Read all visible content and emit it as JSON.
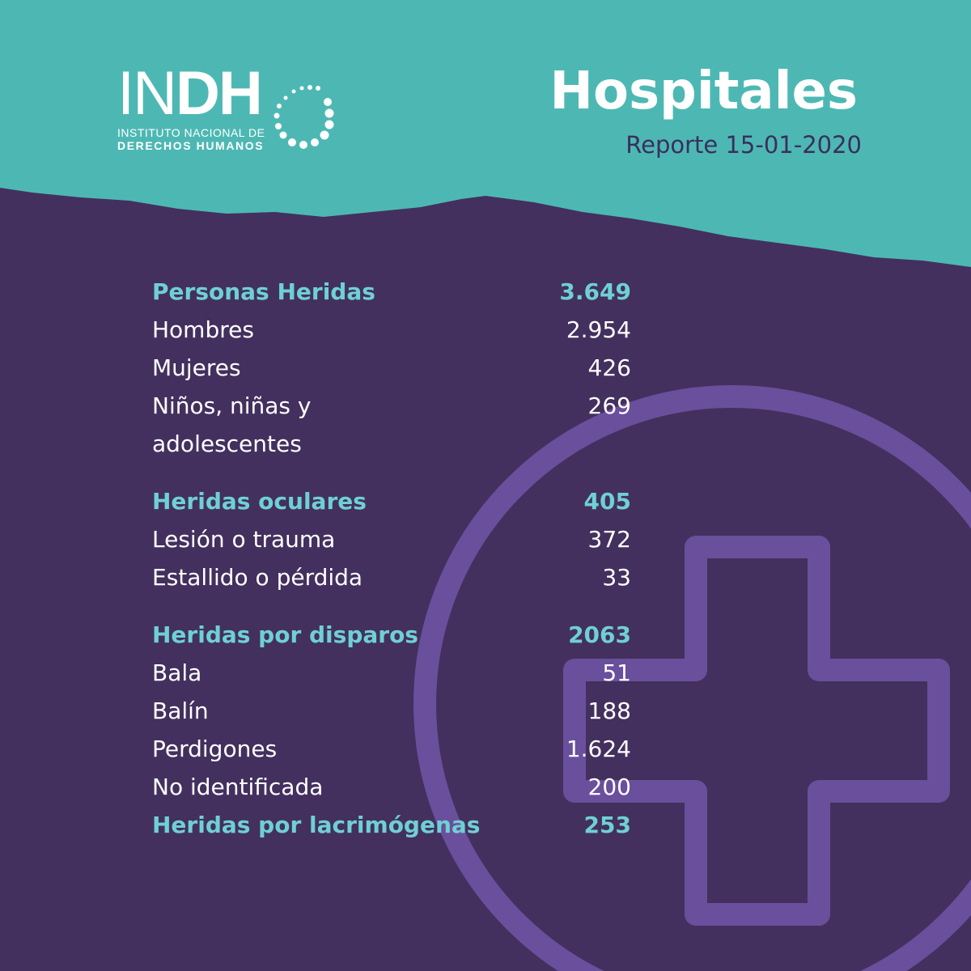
{
  "logo": {
    "main": "INDH",
    "line1": "INSTITUTO NACIONAL DE",
    "line2": "DERECHOS HUMANOS"
  },
  "header": {
    "title": "Hospitales",
    "subtitle": "Reporte 15-01-2020"
  },
  "colors": {
    "teal": "#4db8b3",
    "purple": "#43305e",
    "accent": "#6fd0d4",
    "icon": "#6a4f9c"
  },
  "sections": [
    {
      "label": "Personas Heridas",
      "value": "3.649",
      "items": [
        {
          "label": "Hombres",
          "value": "2.954"
        },
        {
          "label": "Mujeres",
          "value": "426"
        },
        {
          "label": "Niños, niñas y adolescentes",
          "value": "269"
        }
      ]
    },
    {
      "label": "Heridas oculares",
      "value": "405",
      "items": [
        {
          "label": "Lesión o trauma",
          "value": "372"
        },
        {
          "label": "Estallido o pérdida",
          "value": "33"
        }
      ]
    },
    {
      "label": "Heridas por disparos",
      "value": "2063",
      "items": [
        {
          "label": "Bala",
          "value": "51"
        },
        {
          "label": "Balín",
          "value": "188"
        },
        {
          "label": "Perdigones",
          "value": "1.624"
        },
        {
          "label": "No identificada",
          "value": "200"
        }
      ]
    },
    {
      "label": "Heridas por lacrimógenas",
      "value": "253",
      "items": []
    }
  ],
  "icon": "medical-cross-in-circle-icon"
}
